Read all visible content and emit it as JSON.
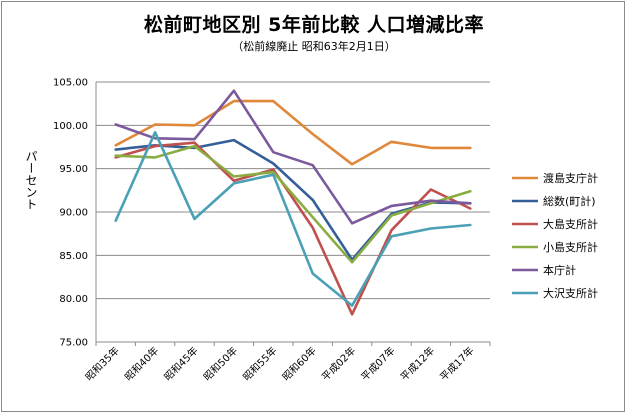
{
  "title": "松前町地区別 5年前比較 人口増減比率",
  "subtitle": "（松前線廃止 昭和63年2月1日）",
  "chart_data": {
    "type": "line",
    "ylabel": "パーセント",
    "ylim": [
      75,
      105
    ],
    "yticks": [
      "75.00",
      "80.00",
      "85.00",
      "90.00",
      "95.00",
      "100.00",
      "105.00"
    ],
    "categories": [
      "昭和35年",
      "昭和40年",
      "昭和45年",
      "昭和50年",
      "昭和55年",
      "昭和60年",
      "平成02年",
      "平成07年",
      "平成12年",
      "平成17年"
    ],
    "grid": true,
    "legend_position": "right",
    "series": [
      {
        "name": "渡島支庁計",
        "color": "#e0883a",
        "values": [
          97.7,
          100.1,
          100.0,
          102.8,
          102.8,
          99.0,
          95.5,
          98.1,
          97.4,
          97.4
        ]
      },
      {
        "name": "総数(町計)",
        "color": "#355f99",
        "values": [
          97.2,
          97.7,
          97.4,
          98.3,
          95.6,
          91.4,
          84.5,
          89.8,
          91.1,
          91.0
        ]
      },
      {
        "name": "大島支所計",
        "color": "#c0504d",
        "values": [
          96.3,
          97.6,
          98.0,
          93.6,
          94.9,
          88.2,
          78.2,
          87.9,
          92.6,
          90.4
        ]
      },
      {
        "name": "小島支所計",
        "color": "#8aad42",
        "values": [
          96.5,
          96.3,
          97.6,
          94.1,
          94.6,
          89.4,
          84.2,
          89.6,
          91.0,
          92.4
        ]
      },
      {
        "name": "本庁計",
        "color": "#7a5a9c",
        "values": [
          100.1,
          98.5,
          98.4,
          104.0,
          96.9,
          95.4,
          88.7,
          90.7,
          91.3,
          91.0
        ]
      },
      {
        "name": "大沢支所計",
        "color": "#4aa0b5",
        "values": [
          89.0,
          99.2,
          89.2,
          93.3,
          94.3,
          82.9,
          79.2,
          87.2,
          88.1,
          88.5
        ]
      }
    ]
  }
}
